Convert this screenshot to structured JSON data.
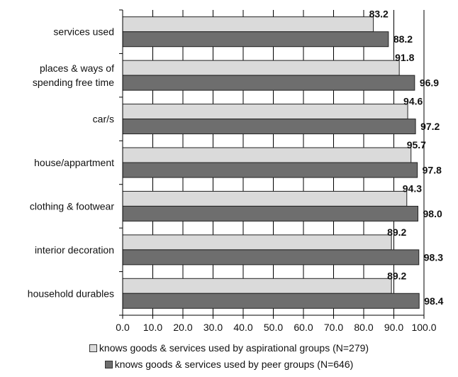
{
  "chart_data": {
    "type": "bar",
    "orientation": "horizontal",
    "categories": [
      [
        "services used"
      ],
      [
        "places & ways of",
        "spending free time"
      ],
      [
        "car/s"
      ],
      [
        "house/appartment"
      ],
      [
        "clothing & footwear"
      ],
      [
        "interior decoration"
      ],
      [
        "household durables"
      ]
    ],
    "series": [
      {
        "name": "knows goods & services used by aspirational groups  (N=279)",
        "color": "#dadada",
        "values": [
          83.2,
          91.8,
          94.6,
          95.7,
          94.3,
          89.2,
          89.2
        ],
        "labels": [
          "83.2",
          "91.8",
          "94.6",
          "95.7",
          "94.3",
          "89.2",
          "89.2"
        ]
      },
      {
        "name": "knows goods & services used by peer groups (N=646)",
        "color": "#6e6e6e",
        "values": [
          88.2,
          96.9,
          97.2,
          97.8,
          98.0,
          98.3,
          98.4
        ],
        "labels": [
          "88.2",
          "96.9",
          "97.2",
          "97.8",
          "98.0",
          "98.3",
          "98.4"
        ]
      }
    ],
    "xlim": [
      0,
      100
    ],
    "xticks": [
      "0.0",
      "10.0",
      "20.0",
      "30.0",
      "40.0",
      "50.0",
      "60.0",
      "70.0",
      "80.0",
      "90.0",
      "100.0"
    ],
    "grid": true,
    "legend_position": "bottom"
  }
}
